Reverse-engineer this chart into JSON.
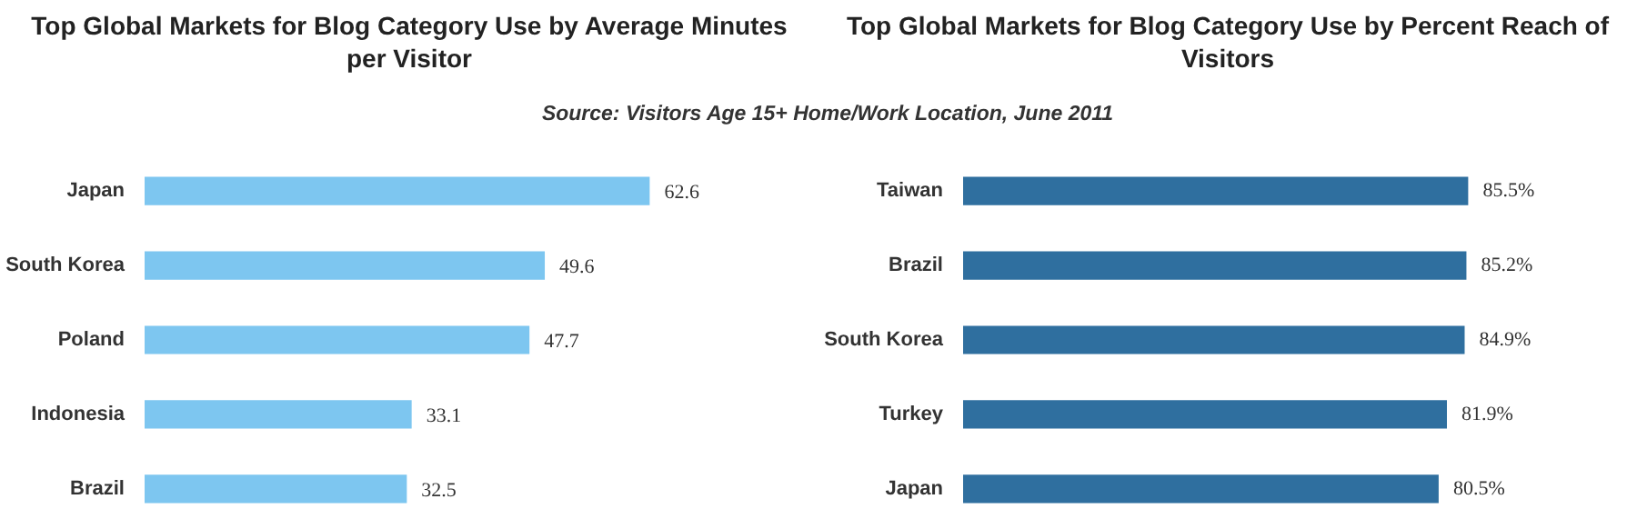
{
  "chart_data": [
    {
      "type": "bar",
      "orientation": "horizontal",
      "title": "Top Global Markets for Blog Category Use by Average Minutes per Visitor",
      "annotations": [
        "Source: Visitors Age 15+ Home/Work Location, June 2011"
      ],
      "categories": [
        "Japan",
        "South Korea",
        "Poland",
        "Indonesia",
        "Brazil"
      ],
      "values": [
        62.6,
        49.6,
        47.7,
        33.1,
        32.5
      ],
      "color": "#7dc6f0",
      "data_labels": true,
      "tick_labels": "y",
      "grid": false
    },
    {
      "type": "bar",
      "orientation": "horizontal",
      "title": "Top Global Markets for Blog Category Use by Percent Reach of Visitors",
      "categories": [
        "Taiwan",
        "Brazil",
        "South Korea",
        "Turkey",
        "Japan"
      ],
      "values": [
        85.5,
        85.2,
        84.9,
        81.9,
        80.5
      ],
      "value_labels": [
        "85.5%",
        "85.2%",
        "84.9%",
        "81.9%",
        "80.5%"
      ],
      "color": "#2f6f9f",
      "tick_labels": "y",
      "grid": false
    }
  ]
}
